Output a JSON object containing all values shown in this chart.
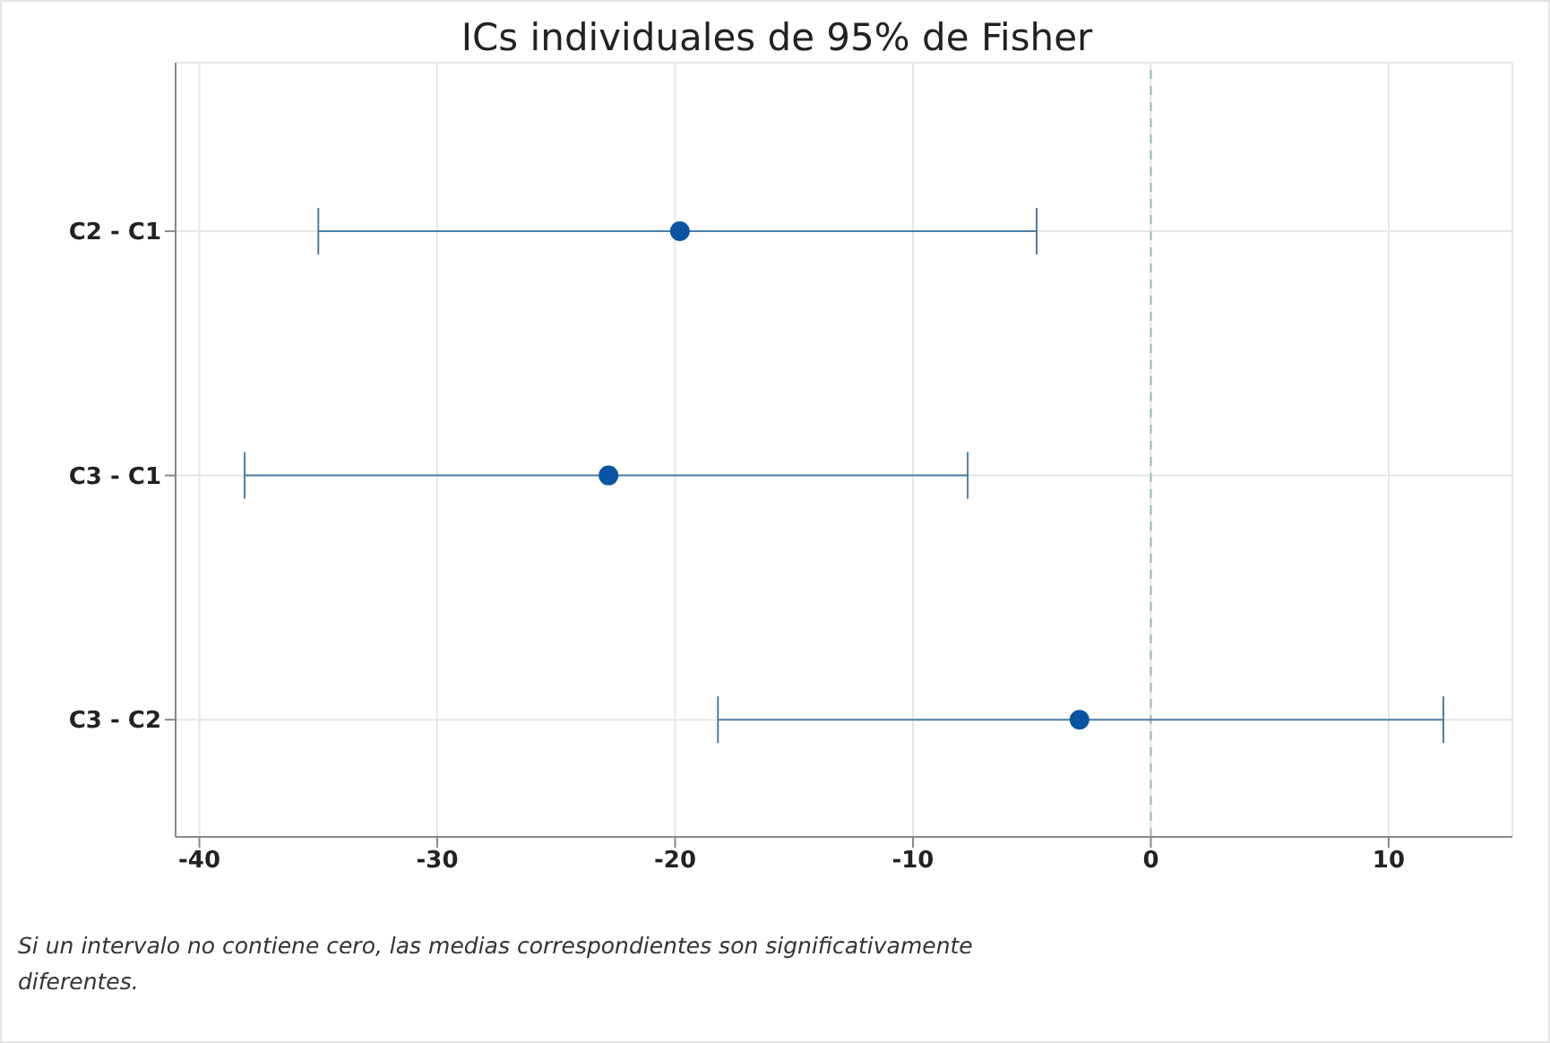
{
  "chart_data": {
    "type": "scatter",
    "orientation": "horizontal",
    "title": "ICs individuales de 95% de Fisher",
    "categories": [
      "C2 - C1",
      "C3 - C1",
      "C3 - C2"
    ],
    "series": [
      {
        "color": "#0a55a3",
        "values": [
          -19.8,
          -22.8,
          -3.0
        ],
        "errors": [
          [
            -35.0,
            -4.8
          ],
          [
            -38.1,
            -7.7
          ],
          [
            -18.2,
            12.3
          ]
        ]
      }
    ],
    "xlim": [
      -41,
      15.2
    ],
    "xticks": [
      -40,
      -30,
      -20,
      -10,
      0,
      10
    ],
    "grid": true,
    "marker": "circle",
    "ref_lines": [
      {
        "axis": "x",
        "value": 0,
        "color": "#9ab8b8",
        "line_style": "dashed"
      }
    ],
    "annotations": [
      "Si un intervalo no contiene cero, las medias correspondientes son significativamente diferentes."
    ]
  }
}
